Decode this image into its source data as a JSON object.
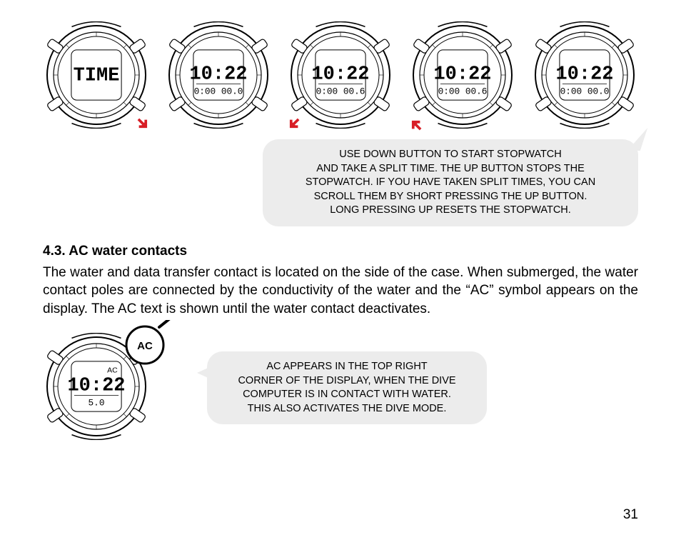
{
  "watches_top": [
    {
      "line1": "TIME",
      "line2": "",
      "arrow": "down-right"
    },
    {
      "line1": "10:22",
      "line2": "0:00 00.0",
      "arrow": null
    },
    {
      "line1": "10:22",
      "line2": "0:00 00.6",
      "arrow": "down-left"
    },
    {
      "line1": "10:22",
      "line2": "0:00 00.6",
      "arrow": "up-left"
    },
    {
      "line1": "10:22",
      "line2": "0:00 00.0",
      "arrow": null
    }
  ],
  "callout1_lines": [
    "USE DOWN BUTTON TO START STOPWATCH",
    "AND TAKE A SPLIT TIME.  THE UP BUTTON STOPS THE",
    "STOPWATCH. IF YOU HAVE TAKEN SPLIT TIMES, YOU CAN",
    "SCROLL THEM BY SHORT PRESSING THE UP BUTTON.",
    "LONG PRESSING UP RESETS THE STOPWATCH."
  ],
  "section_heading": "4.3. AC water contacts",
  "body_text": "The water and data transfer contact is located on the side of the case. When submerged, the water contact poles are connected by the conductivity of the water and the “AC” symbol appears on the display. The AC text is shown until the water contact deactivates.",
  "ac_watch": {
    "line1": "10:22",
    "line2": "5.0",
    "top_right": "AC",
    "bubble": "AC"
  },
  "callout2_lines": [
    "AC APPEARS IN THE TOP RIGHT",
    "CORNER OF THE DISPLAY, WHEN THE DIVE",
    "COMPUTER IS IN CONTACT WITH WATER.",
    "THIS ALSO ACTIVATES THE DIVE MODE."
  ],
  "page_number": "31",
  "colors": {
    "arrow": "#d81e26",
    "callout_bg": "#ececec"
  }
}
